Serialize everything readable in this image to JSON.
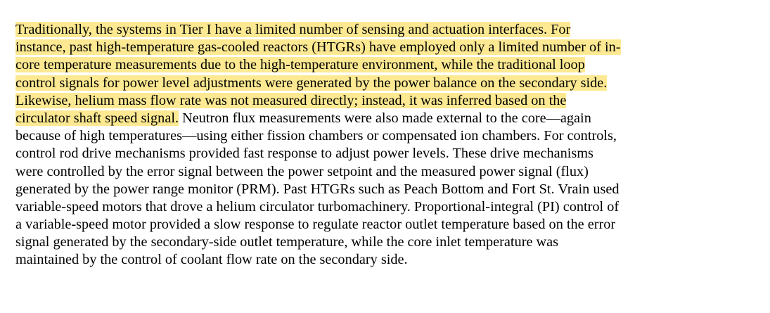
{
  "document": {
    "highlight_color": "#fde992",
    "lines": [
      {
        "highlighted": "Traditionally, the systems in Tier I have a limited number of sensing and actuation interfaces. For",
        "rest": ""
      },
      {
        "highlighted": "instance, past high-temperature gas-cooled reactors (HTGRs) have employed only a limited number of in-",
        "rest": ""
      },
      {
        "highlighted": "core temperature measurements due to the high-temperature environment, while the traditional loop",
        "rest": ""
      },
      {
        "highlighted": "control signals for power level adjustments were generated by the power balance on the secondary side.",
        "rest": ""
      },
      {
        "highlighted": "Likewise, helium mass flow rate was not measured directly; instead, it was inferred based on the",
        "rest": ""
      },
      {
        "highlighted": "circulator shaft speed signal.",
        "rest": " Neutron flux measurements were also made external to the core—again"
      },
      {
        "highlighted": "",
        "rest": "because of high temperatures—using either fission chambers or compensated ion chambers. For controls,"
      },
      {
        "highlighted": "",
        "rest": "control rod drive mechanisms provided fast response to adjust power levels. These drive mechanisms"
      },
      {
        "highlighted": "",
        "rest": "were controlled by the error signal between the power setpoint and the measured power signal (flux)"
      },
      {
        "highlighted": "",
        "rest": "generated by the power range monitor (PRM). Past HTGRs such as Peach Bottom and Fort St. Vrain used"
      },
      {
        "highlighted": "",
        "rest": "variable-speed motors that drove a helium circulator turbomachinery. Proportional-integral (PI) control of"
      },
      {
        "highlighted": "",
        "rest": "a variable-speed motor provided a slow response to regulate reactor outlet temperature based on the error"
      },
      {
        "highlighted": "",
        "rest": "signal generated by the secondary-side outlet temperature, while the core inlet temperature was"
      },
      {
        "highlighted": "",
        "rest": "maintained by the control of coolant flow rate on the secondary side."
      }
    ]
  }
}
